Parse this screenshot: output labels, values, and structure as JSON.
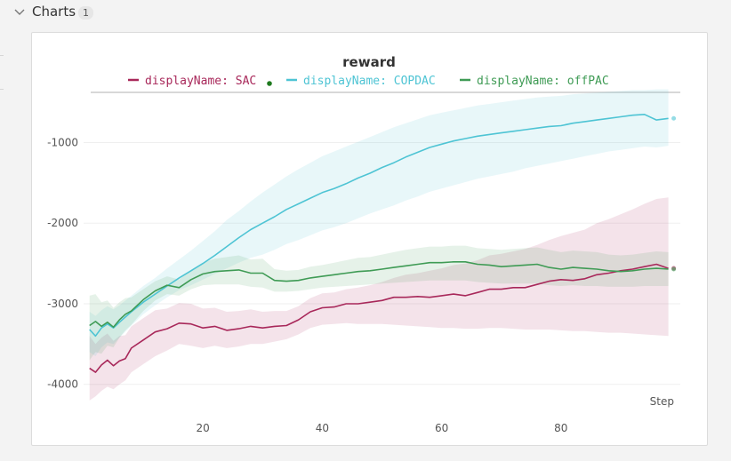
{
  "section": {
    "title": "Charts",
    "count": "1"
  },
  "chart_data": {
    "type": "line",
    "title": "reward",
    "xlabel": "Step",
    "ylabel": "",
    "xlim": [
      0,
      100
    ],
    "ylim": [
      -4400,
      -300
    ],
    "x_ticks": [
      20,
      40,
      60,
      80
    ],
    "y_ticks": [
      -1000,
      -2000,
      -3000,
      -4000
    ],
    "grid": true,
    "legend_position": "top",
    "series": [
      {
        "name": "displayName: SAC",
        "color": "#a8285a",
        "marker": true,
        "x": [
          1,
          2,
          3,
          4,
          5,
          6,
          7,
          8,
          10,
          12,
          14,
          16,
          18,
          20,
          22,
          24,
          26,
          28,
          30,
          32,
          34,
          36,
          38,
          40,
          42,
          44,
          46,
          48,
          50,
          52,
          54,
          56,
          58,
          60,
          62,
          64,
          66,
          68,
          70,
          72,
          74,
          76,
          78,
          80,
          82,
          84,
          86,
          88,
          90,
          92,
          94,
          96,
          98
        ],
        "y": [
          -3800,
          -3850,
          -3760,
          -3700,
          -3770,
          -3710,
          -3680,
          -3550,
          -3450,
          -3350,
          -3310,
          -3240,
          -3250,
          -3300,
          -3280,
          -3330,
          -3310,
          -3280,
          -3300,
          -3280,
          -3270,
          -3200,
          -3100,
          -3050,
          -3040,
          -3000,
          -3000,
          -2980,
          -2960,
          -2920,
          -2920,
          -2910,
          -2920,
          -2900,
          -2880,
          -2900,
          -2860,
          -2820,
          -2820,
          -2800,
          -2800,
          -2760,
          -2720,
          -2700,
          -2710,
          -2690,
          -2640,
          -2620,
          -2590,
          -2570,
          -2540,
          -2510,
          -2560
        ],
        "lower": [
          -4200,
          -4150,
          -4080,
          -4030,
          -4060,
          -4000,
          -3950,
          -3850,
          -3750,
          -3650,
          -3580,
          -3500,
          -3520,
          -3550,
          -3520,
          -3550,
          -3530,
          -3500,
          -3500,
          -3470,
          -3440,
          -3380,
          -3300,
          -3260,
          -3250,
          -3240,
          -3250,
          -3250,
          -3250,
          -3260,
          -3270,
          -3280,
          -3290,
          -3300,
          -3300,
          -3310,
          -3310,
          -3300,
          -3300,
          -3310,
          -3320,
          -3320,
          -3320,
          -3330,
          -3340,
          -3340,
          -3350,
          -3360,
          -3360,
          -3370,
          -3380,
          -3390,
          -3400
        ],
        "upper": [
          -3400,
          -3500,
          -3420,
          -3370,
          -3460,
          -3400,
          -3390,
          -3280,
          -3180,
          -3080,
          -3060,
          -2990,
          -3000,
          -3060,
          -3050,
          -3100,
          -3090,
          -3070,
          -3100,
          -3090,
          -3090,
          -3030,
          -2930,
          -2870,
          -2860,
          -2820,
          -2800,
          -2770,
          -2730,
          -2680,
          -2640,
          -2620,
          -2590,
          -2560,
          -2520,
          -2500,
          -2460,
          -2400,
          -2380,
          -2350,
          -2320,
          -2270,
          -2210,
          -2160,
          -2120,
          -2080,
          -2000,
          -1950,
          -1890,
          -1830,
          -1760,
          -1700,
          -1680
        ]
      },
      {
        "name": "displayName: COPDAC",
        "color": "#4ec4d4",
        "marker": false,
        "x": [
          1,
          2,
          3,
          4,
          5,
          6,
          8,
          10,
          12,
          14,
          16,
          18,
          20,
          22,
          24,
          26,
          28,
          30,
          32,
          34,
          36,
          38,
          40,
          42,
          44,
          46,
          48,
          50,
          52,
          54,
          56,
          58,
          60,
          62,
          64,
          66,
          68,
          70,
          72,
          74,
          76,
          78,
          80,
          82,
          84,
          86,
          88,
          90,
          92,
          94,
          96,
          98
        ],
        "y": [
          -3320,
          -3400,
          -3300,
          -3250,
          -3300,
          -3230,
          -3100,
          -2980,
          -2880,
          -2780,
          -2680,
          -2590,
          -2500,
          -2400,
          -2290,
          -2180,
          -2080,
          -2000,
          -1920,
          -1830,
          -1760,
          -1690,
          -1620,
          -1570,
          -1510,
          -1440,
          -1380,
          -1310,
          -1250,
          -1180,
          -1120,
          -1060,
          -1020,
          -980,
          -950,
          -920,
          -900,
          -880,
          -860,
          -840,
          -820,
          -800,
          -790,
          -760,
          -740,
          -720,
          -700,
          -680,
          -660,
          -650,
          -720,
          -700
        ],
        "lower": [
          -3600,
          -3650,
          -3540,
          -3480,
          -3500,
          -3420,
          -3270,
          -3130,
          -3020,
          -2920,
          -2830,
          -2770,
          -2700,
          -2630,
          -2560,
          -2490,
          -2430,
          -2390,
          -2330,
          -2260,
          -2210,
          -2150,
          -2090,
          -2050,
          -2000,
          -1940,
          -1880,
          -1830,
          -1780,
          -1720,
          -1670,
          -1610,
          -1570,
          -1530,
          -1490,
          -1450,
          -1420,
          -1390,
          -1360,
          -1320,
          -1290,
          -1260,
          -1230,
          -1200,
          -1170,
          -1140,
          -1110,
          -1090,
          -1070,
          -1050,
          -1060,
          -1040
        ],
        "upper": [
          -3100,
          -3150,
          -3080,
          -3030,
          -3070,
          -3020,
          -2900,
          -2780,
          -2680,
          -2560,
          -2450,
          -2340,
          -2220,
          -2100,
          -1960,
          -1850,
          -1730,
          -1620,
          -1520,
          -1420,
          -1330,
          -1250,
          -1170,
          -1110,
          -1050,
          -990,
          -930,
          -870,
          -810,
          -760,
          -710,
          -660,
          -630,
          -600,
          -570,
          -540,
          -520,
          -500,
          -480,
          -460,
          -440,
          -430,
          -420,
          -400,
          -390,
          -380,
          -370,
          -360,
          -350,
          -350,
          -340,
          -340
        ]
      },
      {
        "name": "displayName: offPAC",
        "color": "#3f9b55",
        "marker": false,
        "x": [
          1,
          2,
          3,
          4,
          5,
          6,
          7,
          8,
          10,
          12,
          14,
          16,
          18,
          20,
          22,
          24,
          26,
          28,
          30,
          32,
          34,
          36,
          38,
          40,
          42,
          44,
          46,
          48,
          50,
          52,
          54,
          56,
          58,
          60,
          62,
          64,
          66,
          68,
          70,
          72,
          74,
          76,
          78,
          80,
          82,
          84,
          86,
          88,
          90,
          92,
          94,
          96,
          98
        ],
        "y": [
          -3270,
          -3220,
          -3280,
          -3230,
          -3290,
          -3200,
          -3130,
          -3090,
          -2950,
          -2840,
          -2770,
          -2800,
          -2700,
          -2630,
          -2600,
          -2590,
          -2580,
          -2620,
          -2620,
          -2710,
          -2720,
          -2710,
          -2680,
          -2660,
          -2640,
          -2620,
          -2600,
          -2590,
          -2570,
          -2550,
          -2530,
          -2510,
          -2490,
          -2490,
          -2480,
          -2480,
          -2510,
          -2520,
          -2540,
          -2530,
          -2520,
          -2510,
          -2550,
          -2570,
          -2550,
          -2560,
          -2570,
          -2590,
          -2600,
          -2590,
          -2570,
          -2560,
          -2570
        ],
        "lower": [
          -3700,
          -3600,
          -3620,
          -3520,
          -3540,
          -3420,
          -3330,
          -3260,
          -3090,
          -2960,
          -2880,
          -2900,
          -2820,
          -2770,
          -2760,
          -2760,
          -2760,
          -2790,
          -2800,
          -2850,
          -2850,
          -2840,
          -2820,
          -2800,
          -2790,
          -2780,
          -2770,
          -2760,
          -2750,
          -2740,
          -2730,
          -2720,
          -2710,
          -2710,
          -2710,
          -2710,
          -2730,
          -2740,
          -2750,
          -2750,
          -2750,
          -2750,
          -2770,
          -2780,
          -2770,
          -2780,
          -2780,
          -2790,
          -2790,
          -2790,
          -2780,
          -2780,
          -2780
        ],
        "upper": [
          -2900,
          -2880,
          -2980,
          -2960,
          -3050,
          -2980,
          -2930,
          -2920,
          -2820,
          -2720,
          -2660,
          -2700,
          -2580,
          -2490,
          -2440,
          -2420,
          -2400,
          -2450,
          -2440,
          -2570,
          -2590,
          -2580,
          -2540,
          -2520,
          -2490,
          -2460,
          -2430,
          -2420,
          -2390,
          -2360,
          -2330,
          -2310,
          -2290,
          -2290,
          -2280,
          -2280,
          -2310,
          -2320,
          -2330,
          -2320,
          -2310,
          -2300,
          -2330,
          -2360,
          -2340,
          -2350,
          -2360,
          -2390,
          -2400,
          -2390,
          -2370,
          -2350,
          -2360
        ]
      }
    ]
  }
}
